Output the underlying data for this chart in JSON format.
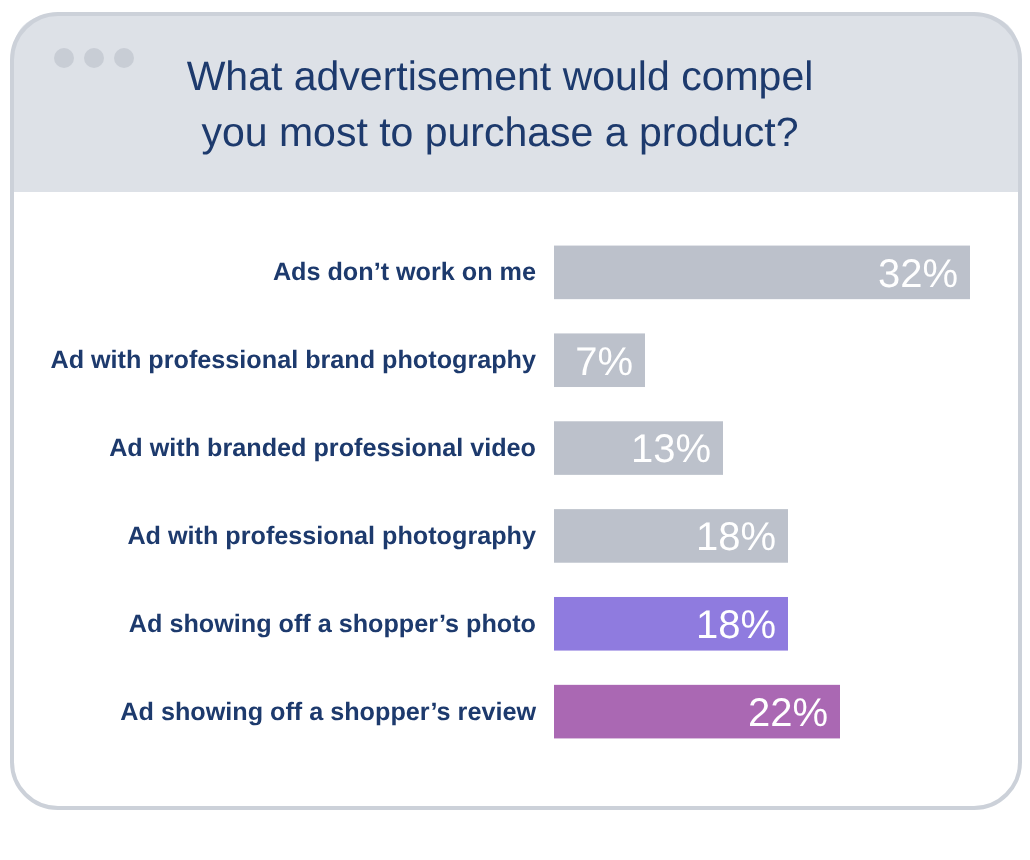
{
  "chart_data": {
    "type": "bar",
    "orientation": "horizontal",
    "title": "What advertisement would compel\nyou most to purchase a product?",
    "categories": [
      "Ads don’t work on me",
      "Ad with professional brand photography",
      "Ad with branded professional video",
      "Ad with professional photography",
      "Ad showing off a shopper’s photo",
      "Ad showing off a shopper’s review"
    ],
    "values": [
      32,
      7,
      13,
      18,
      18,
      22
    ],
    "value_labels": [
      "32%",
      "7%",
      "13%",
      "18%",
      "18%",
      "22%"
    ],
    "colors": [
      "#bcc1cb",
      "#bcc1cb",
      "#bcc1cb",
      "#bcc1cb",
      "#8f7bdf",
      "#aa68b3"
    ],
    "tick_labels": "y",
    "grid": false
  }
}
